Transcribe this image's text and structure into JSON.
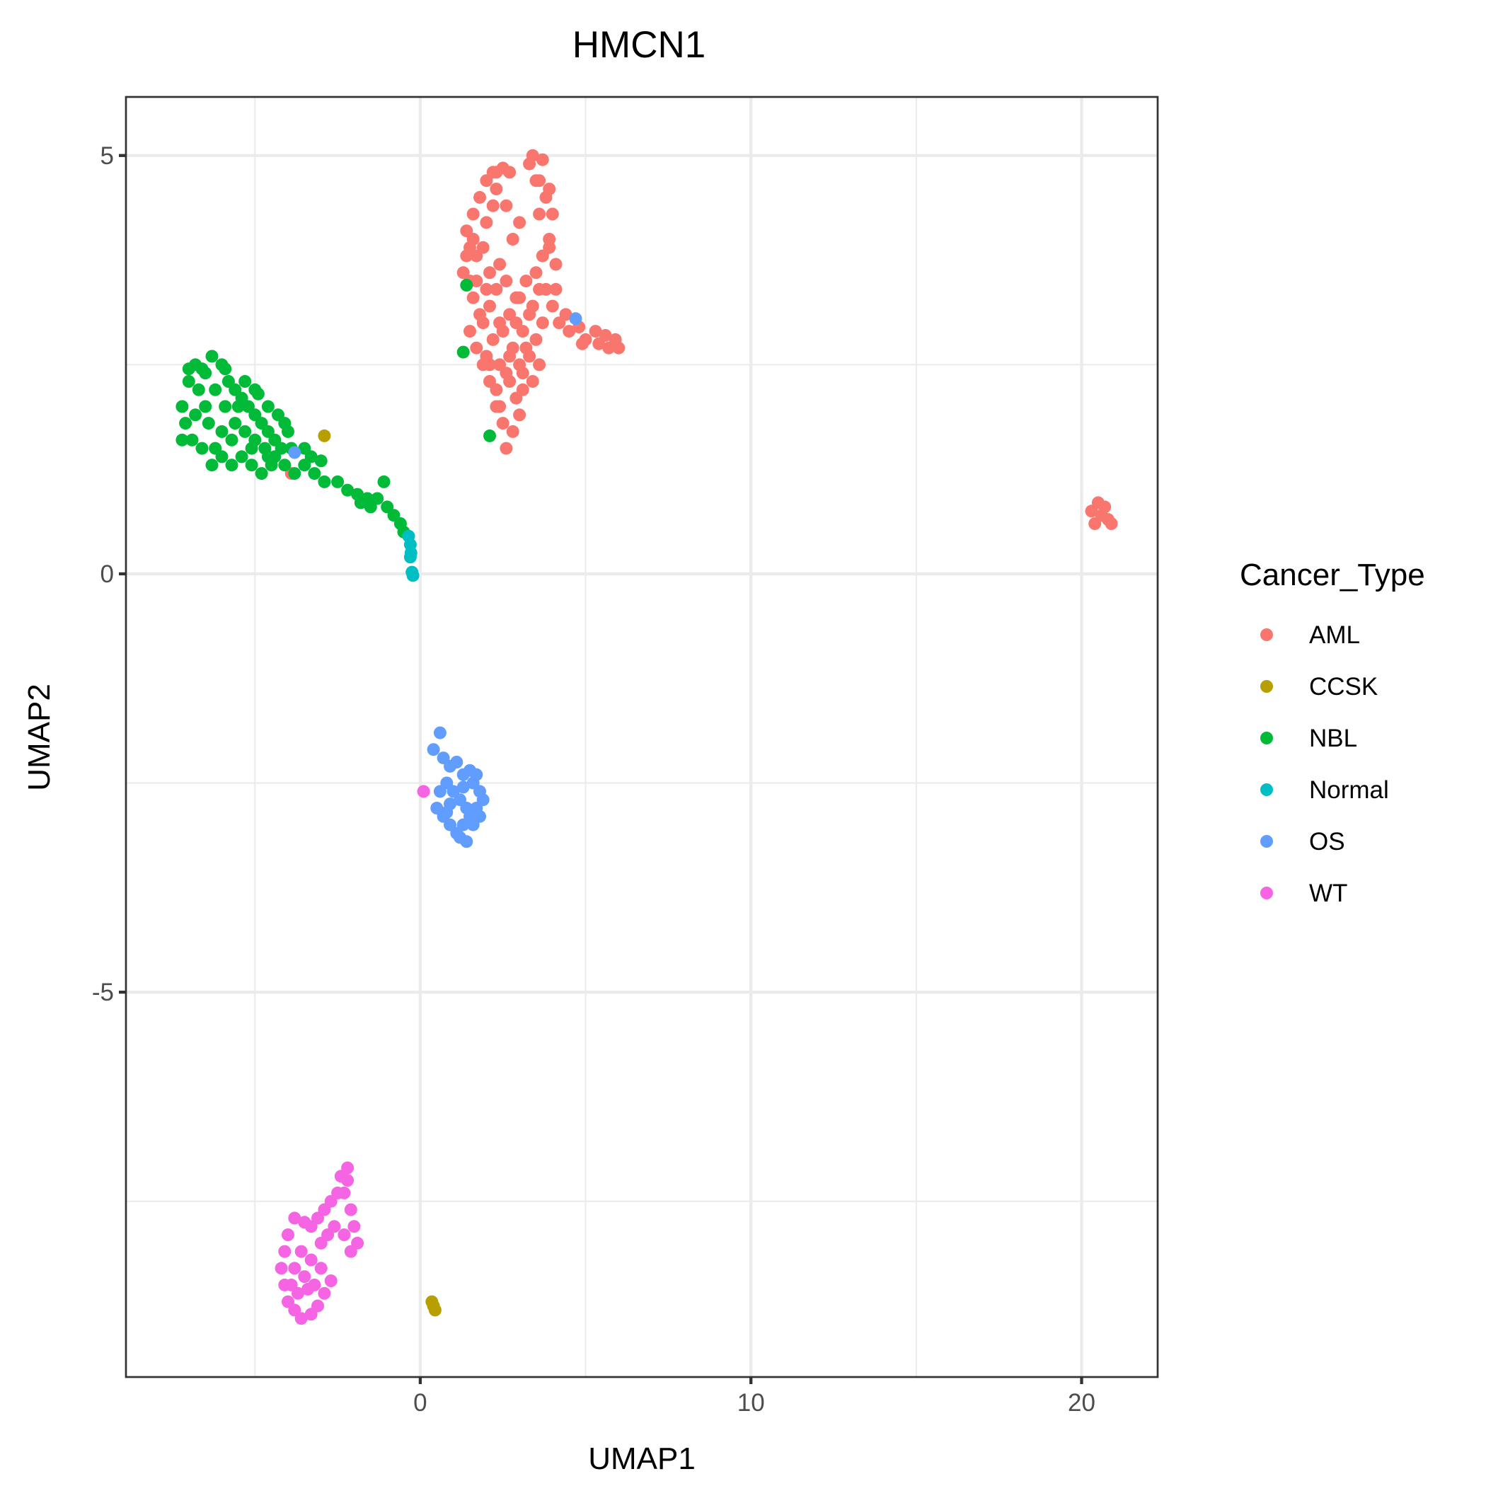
{
  "chart_data": {
    "type": "scatter",
    "title": "HMCN1",
    "xlabel": "UMAP1",
    "ylabel": "UMAP2",
    "xlim": [
      -8.9,
      22.3
    ],
    "ylim": [
      -9.6,
      5.7
    ],
    "x_ticks": [
      0,
      10,
      20
    ],
    "x_tick_labels": [
      "0",
      "10",
      "20"
    ],
    "y_ticks": [
      -5,
      0,
      5
    ],
    "y_tick_labels": [
      "-5",
      "0",
      "5"
    ],
    "x_minor_ticks": [
      -5,
      5,
      15
    ],
    "y_minor_ticks": [
      -7.5,
      -2.5,
      2.5
    ],
    "grid": true,
    "legend": {
      "title": "Cancer_Type",
      "position": "right"
    },
    "series": [
      {
        "name": "AML",
        "color": "#F8766D",
        "points": [
          [
            1.4,
            4.1
          ],
          [
            1.6,
            4.3
          ],
          [
            1.5,
            3.9
          ],
          [
            1.3,
            3.6
          ],
          [
            1.7,
            3.8
          ],
          [
            1.8,
            4.5
          ],
          [
            2.0,
            4.7
          ],
          [
            2.2,
            4.8
          ],
          [
            2.5,
            4.85
          ],
          [
            2.3,
            4.6
          ],
          [
            2.0,
            4.2
          ],
          [
            1.9,
            3.9
          ],
          [
            2.1,
            3.6
          ],
          [
            1.6,
            3.3
          ],
          [
            1.8,
            3.1
          ],
          [
            1.5,
            2.9
          ],
          [
            1.7,
            2.7
          ],
          [
            1.9,
            2.5
          ],
          [
            2.1,
            2.3
          ],
          [
            2.3,
            2.2
          ],
          [
            2.4,
            2.0
          ],
          [
            2.6,
            2.4
          ],
          [
            2.8,
            2.7
          ],
          [
            2.5,
            2.9
          ],
          [
            2.7,
            3.1
          ],
          [
            2.9,
            3.3
          ],
          [
            2.6,
            3.5
          ],
          [
            2.4,
            3.7
          ],
          [
            2.3,
            3.4
          ],
          [
            2.1,
            3.2
          ],
          [
            1.9,
            3.0
          ],
          [
            2.2,
            2.8
          ],
          [
            2.0,
            2.6
          ],
          [
            2.4,
            2.5
          ],
          [
            2.7,
            2.3
          ],
          [
            3.0,
            2.5
          ],
          [
            3.2,
            2.7
          ],
          [
            3.1,
            2.9
          ],
          [
            3.3,
            3.1
          ],
          [
            3.0,
            3.3
          ],
          [
            3.2,
            3.5
          ],
          [
            3.5,
            3.6
          ],
          [
            3.7,
            3.8
          ],
          [
            3.9,
            4.0
          ],
          [
            3.6,
            4.3
          ],
          [
            3.8,
            4.5
          ],
          [
            3.5,
            4.7
          ],
          [
            3.3,
            4.9
          ],
          [
            3.4,
            5.0
          ],
          [
            3.7,
            4.95
          ],
          [
            3.9,
            4.6
          ],
          [
            4.0,
            4.3
          ],
          [
            3.9,
            3.9
          ],
          [
            4.1,
            3.7
          ],
          [
            3.8,
            3.4
          ],
          [
            4.0,
            3.2
          ],
          [
            3.7,
            3.0
          ],
          [
            3.5,
            2.8
          ],
          [
            3.3,
            2.6
          ],
          [
            3.1,
            2.4
          ],
          [
            2.9,
            2.1
          ],
          [
            3.0,
            1.9
          ],
          [
            2.8,
            1.7
          ],
          [
            2.6,
            1.5
          ],
          [
            2.5,
            1.8
          ],
          [
            2.3,
            2.0
          ],
          [
            2.1,
            2.5
          ],
          [
            3.4,
            2.3
          ],
          [
            3.6,
            2.5
          ],
          [
            4.2,
            3.0
          ],
          [
            4.5,
            2.9
          ],
          [
            4.8,
            2.95
          ],
          [
            5.0,
            2.8
          ],
          [
            5.3,
            2.9
          ],
          [
            5.6,
            2.85
          ],
          [
            5.9,
            2.8
          ],
          [
            6.0,
            2.7
          ],
          [
            5.7,
            2.7
          ],
          [
            5.4,
            2.75
          ],
          [
            4.9,
            2.75
          ],
          [
            4.4,
            3.1
          ],
          [
            4.1,
            3.4
          ],
          [
            2.2,
            4.4
          ],
          [
            2.8,
            4.0
          ],
          [
            3.0,
            4.2
          ],
          [
            2.6,
            4.4
          ],
          [
            1.5,
            3.5
          ],
          [
            1.4,
            3.8
          ],
          [
            1.6,
            4.0
          ],
          [
            1.7,
            3.5
          ],
          [
            2.0,
            3.4
          ],
          [
            2.4,
            3.0
          ],
          [
            2.7,
            2.6
          ],
          [
            3.1,
            2.2
          ],
          [
            2.9,
            3.0
          ],
          [
            3.4,
            3.2
          ],
          [
            3.6,
            3.4
          ],
          [
            2.3,
            4.8
          ],
          [
            2.7,
            4.8
          ],
          [
            3.6,
            4.7
          ],
          [
            20.3,
            0.75
          ],
          [
            20.5,
            0.85
          ],
          [
            20.6,
            0.7
          ],
          [
            20.8,
            0.65
          ],
          [
            20.9,
            0.6
          ],
          [
            20.4,
            0.6
          ],
          [
            20.7,
            0.8
          ],
          [
            -3.9,
            1.2
          ]
        ]
      },
      {
        "name": "CCSK",
        "color": "#B79F00",
        "points": [
          [
            -2.9,
            1.65
          ],
          [
            0.35,
            -8.7
          ],
          [
            0.4,
            -8.75
          ],
          [
            0.45,
            -8.8
          ]
        ]
      },
      {
        "name": "NBL",
        "color": "#00BA38",
        "points": [
          [
            -7.2,
            2.0
          ],
          [
            -7.0,
            2.3
          ],
          [
            -6.8,
            2.5
          ],
          [
            -6.5,
            2.4
          ],
          [
            -6.3,
            2.6
          ],
          [
            -6.0,
            2.5
          ],
          [
            -5.8,
            2.3
          ],
          [
            -5.6,
            2.2
          ],
          [
            -5.4,
            2.1
          ],
          [
            -5.2,
            2.0
          ],
          [
            -5.0,
            1.9
          ],
          [
            -4.8,
            1.8
          ],
          [
            -4.6,
            1.7
          ],
          [
            -4.4,
            1.6
          ],
          [
            -4.2,
            1.5
          ],
          [
            -4.5,
            1.3
          ],
          [
            -4.8,
            1.2
          ],
          [
            -5.1,
            1.3
          ],
          [
            -5.4,
            1.4
          ],
          [
            -5.7,
            1.3
          ],
          [
            -6.0,
            1.4
          ],
          [
            -6.3,
            1.3
          ],
          [
            -6.6,
            1.5
          ],
          [
            -6.9,
            1.6
          ],
          [
            -7.2,
            1.6
          ],
          [
            -7.1,
            1.8
          ],
          [
            -6.8,
            1.9
          ],
          [
            -6.5,
            2.0
          ],
          [
            -6.2,
            2.2
          ],
          [
            -5.9,
            2.0
          ],
          [
            -5.6,
            1.8
          ],
          [
            -5.3,
            1.7
          ],
          [
            -5.0,
            1.6
          ],
          [
            -4.7,
            1.5
          ],
          [
            -4.4,
            1.4
          ],
          [
            -4.1,
            1.3
          ],
          [
            -3.8,
            1.2
          ],
          [
            -3.5,
            1.3
          ],
          [
            -3.2,
            1.2
          ],
          [
            -2.9,
            1.1
          ],
          [
            -2.5,
            1.1
          ],
          [
            -2.2,
            1.0
          ],
          [
            -1.9,
            0.95
          ],
          [
            -1.6,
            0.9
          ],
          [
            -1.3,
            0.9
          ],
          [
            -1.0,
            0.8
          ],
          [
            -0.8,
            0.7
          ],
          [
            -0.6,
            0.6
          ],
          [
            -0.5,
            0.5
          ],
          [
            -1.1,
            1.1
          ],
          [
            -1.5,
            0.8
          ],
          [
            -1.8,
            0.85
          ],
          [
            -3.5,
            1.5
          ],
          [
            -3.3,
            1.4
          ],
          [
            -3.0,
            1.35
          ],
          [
            -4.0,
            1.7
          ],
          [
            -4.3,
            1.9
          ],
          [
            -4.6,
            2.0
          ],
          [
            -5.0,
            2.2
          ],
          [
            -5.5,
            2.0
          ],
          [
            -6.0,
            1.7
          ],
          [
            -6.4,
            1.8
          ],
          [
            -6.7,
            2.2
          ],
          [
            -7.0,
            2.45
          ],
          [
            -6.6,
            2.45
          ],
          [
            -5.9,
            2.45
          ],
          [
            -5.3,
            2.3
          ],
          [
            -4.9,
            2.15
          ],
          [
            -4.1,
            1.8
          ],
          [
            -3.9,
            1.5
          ],
          [
            -5.7,
            1.6
          ],
          [
            -6.2,
            1.5
          ],
          [
            -5.1,
            1.5
          ],
          [
            -4.6,
            1.4
          ],
          [
            1.3,
            2.65
          ],
          [
            2.1,
            1.65
          ],
          [
            1.4,
            3.45
          ]
        ]
      },
      {
        "name": "Normal",
        "color": "#00BFC4",
        "points": [
          [
            -0.35,
            0.45
          ],
          [
            -0.3,
            0.35
          ],
          [
            -0.28,
            0.25
          ],
          [
            -0.3,
            0.2
          ],
          [
            -0.25,
            0.02
          ],
          [
            -0.22,
            -0.02
          ]
        ]
      },
      {
        "name": "OS",
        "color": "#619CFF",
        "points": [
          [
            0.6,
            -1.9
          ],
          [
            0.4,
            -2.1
          ],
          [
            0.7,
            -2.2
          ],
          [
            0.9,
            -2.3
          ],
          [
            1.1,
            -2.25
          ],
          [
            1.3,
            -2.4
          ],
          [
            1.5,
            -2.35
          ],
          [
            1.6,
            -2.5
          ],
          [
            1.8,
            -2.6
          ],
          [
            1.9,
            -2.7
          ],
          [
            1.7,
            -2.8
          ],
          [
            1.5,
            -2.9
          ],
          [
            1.3,
            -3.0
          ],
          [
            1.1,
            -3.1
          ],
          [
            0.9,
            -3.0
          ],
          [
            0.7,
            -2.9
          ],
          [
            0.5,
            -2.8
          ],
          [
            0.6,
            -2.6
          ],
          [
            0.8,
            -2.5
          ],
          [
            1.0,
            -2.6
          ],
          [
            1.2,
            -2.7
          ],
          [
            1.4,
            -2.8
          ],
          [
            1.6,
            -3.0
          ],
          [
            1.8,
            -2.9
          ],
          [
            1.4,
            -3.2
          ],
          [
            1.2,
            -3.15
          ],
          [
            0.9,
            -2.75
          ],
          [
            1.3,
            -2.55
          ],
          [
            1.7,
            -2.4
          ],
          [
            0.8,
            -2.85
          ],
          [
            -3.8,
            1.45
          ],
          [
            4.7,
            3.05
          ]
        ]
      },
      {
        "name": "WT",
        "color": "#F564E3",
        "points": [
          [
            0.1,
            -2.6
          ],
          [
            -2.2,
            -7.1
          ],
          [
            -2.4,
            -7.2
          ],
          [
            -2.5,
            -7.4
          ],
          [
            -2.7,
            -7.5
          ],
          [
            -2.9,
            -7.6
          ],
          [
            -3.1,
            -7.7
          ],
          [
            -3.3,
            -7.8
          ],
          [
            -3.5,
            -7.75
          ],
          [
            -3.8,
            -7.7
          ],
          [
            -4.0,
            -7.9
          ],
          [
            -4.1,
            -8.1
          ],
          [
            -4.2,
            -8.3
          ],
          [
            -4.1,
            -8.5
          ],
          [
            -4.0,
            -8.7
          ],
          [
            -3.8,
            -8.8
          ],
          [
            -3.6,
            -8.9
          ],
          [
            -3.3,
            -8.85
          ],
          [
            -3.1,
            -8.75
          ],
          [
            -2.9,
            -8.6
          ],
          [
            -2.7,
            -8.45
          ],
          [
            -3.0,
            -8.3
          ],
          [
            -3.3,
            -8.2
          ],
          [
            -3.6,
            -8.1
          ],
          [
            -3.8,
            -8.3
          ],
          [
            -3.9,
            -8.5
          ],
          [
            -2.3,
            -7.4
          ],
          [
            -2.1,
            -7.6
          ],
          [
            -2.0,
            -7.8
          ],
          [
            -1.9,
            -8.0
          ],
          [
            -2.1,
            -8.1
          ],
          [
            -2.3,
            -7.9
          ],
          [
            -2.6,
            -7.8
          ],
          [
            -2.8,
            -7.9
          ],
          [
            -3.0,
            -8.0
          ],
          [
            -3.5,
            -8.4
          ],
          [
            -3.7,
            -8.6
          ],
          [
            -3.4,
            -8.55
          ],
          [
            -3.2,
            -8.5
          ],
          [
            -2.2,
            -7.25
          ]
        ]
      }
    ]
  }
}
